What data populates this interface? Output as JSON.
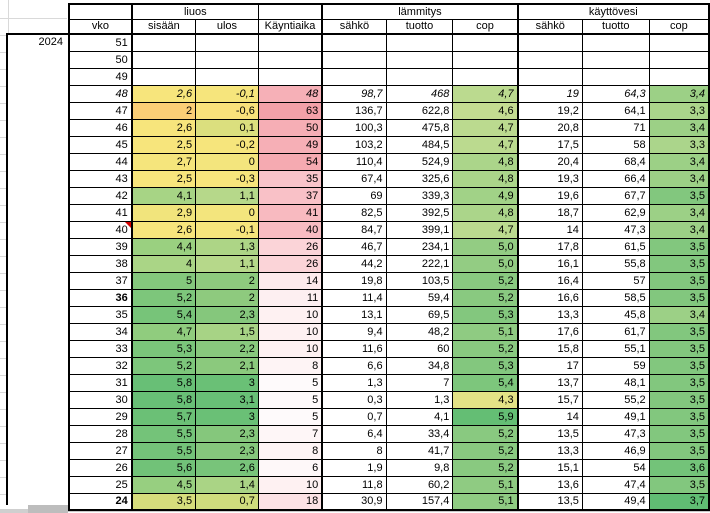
{
  "sheet": {
    "year_label": "2024",
    "header": {
      "group_liuos": "liuos",
      "group_lammitys": "lämmitys",
      "group_kayttovesi": "käyttövesi",
      "col_vko": "vko",
      "col_sisaan": "sisään",
      "col_ulos": "ulos",
      "col_kayntiaika": "Käyntiaika",
      "col_sahko_lammitys": "sähkö",
      "col_tuotto_lammitys": "tuotto",
      "col_cop_lammitys": "cop",
      "col_sahko_kayttovesi": "sähkö",
      "col_tuotto_kayttovesi": "tuotto",
      "col_cop_kayttovesi": "cop"
    },
    "accent_colors": {
      "scale_green_max": "#63be76",
      "scale_yellow_mid": "#f7e57c",
      "scale_orange_low": "#fbce76",
      "scale_pink_max": "#f3a1a8",
      "comment_marker": "#d40000",
      "gridline": "#d9d9d9"
    },
    "rows": [
      {
        "vko": "51",
        "cells": []
      },
      {
        "vko": "50",
        "cells": []
      },
      {
        "vko": "49",
        "cells": []
      },
      {
        "vko": "48",
        "italic": true,
        "cells": [
          {
            "v": "2,6",
            "bg": "#f7e57c"
          },
          {
            "v": "-0,1",
            "bg": "#f6e57c"
          },
          {
            "v": "48",
            "bg": "#f6b0b7"
          },
          {
            "v": "98,7"
          },
          {
            "v": "468"
          },
          {
            "v": "4,7",
            "bg": "#bbda8f"
          },
          {
            "v": "19"
          },
          {
            "v": "64,3"
          },
          {
            "v": "3,4",
            "bg": "#9cd086"
          }
        ]
      },
      {
        "vko": "47",
        "cells": [
          {
            "v": "2",
            "bg": "#fbce76"
          },
          {
            "v": "-0,6",
            "bg": "#f9e17b"
          },
          {
            "v": "63",
            "bg": "#f3a1a8"
          },
          {
            "v": "136,7"
          },
          {
            "v": "622,8"
          },
          {
            "v": "4,6",
            "bg": "#c4dc91"
          },
          {
            "v": "19,2"
          },
          {
            "v": "64,1"
          },
          {
            "v": "3,3",
            "bg": "#abd58b"
          }
        ]
      },
      {
        "vko": "46",
        "cells": [
          {
            "v": "2,6",
            "bg": "#f7e57c"
          },
          {
            "v": "0,1",
            "bg": "#dbdf7e"
          },
          {
            "v": "50",
            "bg": "#f6aeb5"
          },
          {
            "v": "100,3"
          },
          {
            "v": "475,8"
          },
          {
            "v": "4,7",
            "bg": "#bbda8f"
          },
          {
            "v": "20,8"
          },
          {
            "v": "71"
          },
          {
            "v": "3,4",
            "bg": "#9cd086"
          }
        ]
      },
      {
        "vko": "45",
        "cells": [
          {
            "v": "2,5",
            "bg": "#f7e57c"
          },
          {
            "v": "-0,2",
            "bg": "#f6e57c"
          },
          {
            "v": "49",
            "bg": "#f6afb6"
          },
          {
            "v": "103,2"
          },
          {
            "v": "484,5"
          },
          {
            "v": "4,7",
            "bg": "#bbda8f"
          },
          {
            "v": "17,5"
          },
          {
            "v": "58"
          },
          {
            "v": "3,3",
            "bg": "#abd58b"
          }
        ]
      },
      {
        "vko": "44",
        "cells": [
          {
            "v": "2,7",
            "bg": "#f5e57c"
          },
          {
            "v": "0",
            "bg": "#f3e57d"
          },
          {
            "v": "54",
            "bg": "#f5aab1"
          },
          {
            "v": "110,4"
          },
          {
            "v": "524,9"
          },
          {
            "v": "4,8",
            "bg": "#abd58a"
          },
          {
            "v": "20,4"
          },
          {
            "v": "68,4"
          },
          {
            "v": "3,4",
            "bg": "#9cd086"
          }
        ]
      },
      {
        "vko": "43",
        "cells": [
          {
            "v": "2,5",
            "bg": "#f7e57c"
          },
          {
            "v": "-0,3",
            "bg": "#f7e57c"
          },
          {
            "v": "35",
            "bg": "#f9c4ca"
          },
          {
            "v": "67,4"
          },
          {
            "v": "325,6"
          },
          {
            "v": "4,8",
            "bg": "#abd58a"
          },
          {
            "v": "19,3"
          },
          {
            "v": "66,4"
          },
          {
            "v": "3,4",
            "bg": "#9cd086"
          }
        ]
      },
      {
        "vko": "42",
        "cells": [
          {
            "v": "4,1",
            "bg": "#a7d485"
          },
          {
            "v": "1,1",
            "bg": "#b6d88a"
          },
          {
            "v": "37",
            "bg": "#f9c1c7"
          },
          {
            "v": "69"
          },
          {
            "v": "339,3"
          },
          {
            "v": "4,9",
            "bg": "#a1d287"
          },
          {
            "v": "19,6"
          },
          {
            "v": "67,7"
          },
          {
            "v": "3,5",
            "bg": "#82c77e"
          }
        ]
      },
      {
        "vko": "41",
        "cells": [
          {
            "v": "2,9",
            "bg": "#f1e47c"
          },
          {
            "v": "0",
            "bg": "#f3e57d"
          },
          {
            "v": "41",
            "bg": "#f8bac0"
          },
          {
            "v": "82,5"
          },
          {
            "v": "392,5"
          },
          {
            "v": "4,8",
            "bg": "#abd58a"
          },
          {
            "v": "18,7"
          },
          {
            "v": "62,9"
          },
          {
            "v": "3,4",
            "bg": "#9cd086"
          }
        ]
      },
      {
        "vko": "40",
        "note": true,
        "cells": [
          {
            "v": "2,6",
            "bg": "#f7e57c"
          },
          {
            "v": "-0,1",
            "bg": "#f6e57c"
          },
          {
            "v": "40",
            "bg": "#f8bcc2"
          },
          {
            "v": "84,7"
          },
          {
            "v": "399,1"
          },
          {
            "v": "4,7",
            "bg": "#bbda8f"
          },
          {
            "v": "14"
          },
          {
            "v": "47,3"
          },
          {
            "v": "3,4",
            "bg": "#9cd086"
          }
        ]
      },
      {
        "vko": "39",
        "cells": [
          {
            "v": "4,4",
            "bg": "#9ad080"
          },
          {
            "v": "1,3",
            "bg": "#add586"
          },
          {
            "v": "26",
            "bg": "#fbd4d8"
          },
          {
            "v": "46,7"
          },
          {
            "v": "234,1"
          },
          {
            "v": "5,0",
            "bg": "#93cc83"
          },
          {
            "v": "17,8"
          },
          {
            "v": "61,5"
          },
          {
            "v": "3,5",
            "bg": "#82c77e"
          }
        ]
      },
      {
        "vko": "38",
        "cells": [
          {
            "v": "4",
            "bg": "#aad586"
          },
          {
            "v": "1,1",
            "bg": "#b6d88a"
          },
          {
            "v": "26",
            "bg": "#fbd4d8"
          },
          {
            "v": "44,2"
          },
          {
            "v": "222,1"
          },
          {
            "v": "5,0",
            "bg": "#93cc83"
          },
          {
            "v": "16,1"
          },
          {
            "v": "55,8"
          },
          {
            "v": "3,5",
            "bg": "#82c77e"
          }
        ]
      },
      {
        "vko": "37",
        "cells": [
          {
            "v": "5",
            "bg": "#84c87c"
          },
          {
            "v": "2",
            "bg": "#8eca7e"
          },
          {
            "v": "14",
            "bg": "#fdeaec"
          },
          {
            "v": "19,8"
          },
          {
            "v": "103,5"
          },
          {
            "v": "5,2",
            "bg": "#89c980"
          },
          {
            "v": "16,4"
          },
          {
            "v": "57"
          },
          {
            "v": "3,5",
            "bg": "#82c77e"
          }
        ]
      },
      {
        "vko": "36",
        "bold": true,
        "cells": [
          {
            "v": "5,2",
            "bg": "#7dc67b"
          },
          {
            "v": "2",
            "bg": "#8eca7e"
          },
          {
            "v": "11",
            "bg": "#fdeff1"
          },
          {
            "v": "11,4"
          },
          {
            "v": "59,4"
          },
          {
            "v": "5,2",
            "bg": "#89c980"
          },
          {
            "v": "16,6"
          },
          {
            "v": "58,5"
          },
          {
            "v": "3,5",
            "bg": "#82c77e"
          }
        ]
      },
      {
        "vko": "35",
        "cells": [
          {
            "v": "5,4",
            "bg": "#77c479"
          },
          {
            "v": "2,3",
            "bg": "#85c77c"
          },
          {
            "v": "10",
            "bg": "#fef1f2"
          },
          {
            "v": "13,1"
          },
          {
            "v": "69,5"
          },
          {
            "v": "5,3",
            "bg": "#83c77e"
          },
          {
            "v": "13,3"
          },
          {
            "v": "45,8"
          },
          {
            "v": "3,4",
            "bg": "#9cd086"
          }
        ]
      },
      {
        "vko": "34",
        "cells": [
          {
            "v": "4,7",
            "bg": "#90cc7e"
          },
          {
            "v": "1,5",
            "bg": "#a7d385"
          },
          {
            "v": "10",
            "bg": "#fef1f2"
          },
          {
            "v": "9,4"
          },
          {
            "v": "48,2"
          },
          {
            "v": "5,1",
            "bg": "#8fcb82"
          },
          {
            "v": "17,6"
          },
          {
            "v": "61,7"
          },
          {
            "v": "3,5",
            "bg": "#82c77e"
          }
        ]
      },
      {
        "vko": "33",
        "cells": [
          {
            "v": "5,3",
            "bg": "#7ac57a"
          },
          {
            "v": "2,2",
            "bg": "#88c87d"
          },
          {
            "v": "10",
            "bg": "#fef1f2"
          },
          {
            "v": "11,6"
          },
          {
            "v": "60"
          },
          {
            "v": "5,2",
            "bg": "#89c980"
          },
          {
            "v": "15,8"
          },
          {
            "v": "55,1"
          },
          {
            "v": "3,5",
            "bg": "#82c77e"
          }
        ]
      },
      {
        "vko": "32",
        "cells": [
          {
            "v": "5,2",
            "bg": "#7dc67b"
          },
          {
            "v": "2,1",
            "bg": "#8bc97d"
          },
          {
            "v": "8",
            "bg": "#fef4f5"
          },
          {
            "v": "6,6"
          },
          {
            "v": "34,8"
          },
          {
            "v": "5,3",
            "bg": "#83c77e"
          },
          {
            "v": "17"
          },
          {
            "v": "59"
          },
          {
            "v": "3,5",
            "bg": "#82c77e"
          }
        ]
      },
      {
        "vko": "31",
        "cells": [
          {
            "v": "5,8",
            "bg": "#68bf76"
          },
          {
            "v": "3",
            "bg": "#6ac076"
          },
          {
            "v": "5",
            "bg": "#fefafb"
          },
          {
            "v": "1,3"
          },
          {
            "v": "7"
          },
          {
            "v": "5,4",
            "bg": "#7dc67c"
          },
          {
            "v": "13,7"
          },
          {
            "v": "48,1"
          },
          {
            "v": "3,5",
            "bg": "#82c77e"
          }
        ]
      },
      {
        "vko": "30",
        "cells": [
          {
            "v": "5,8",
            "bg": "#68bf76"
          },
          {
            "v": "3,1",
            "bg": "#68bf76"
          },
          {
            "v": "5",
            "bg": "#fefafb"
          },
          {
            "v": "0,3"
          },
          {
            "v": "1,3"
          },
          {
            "v": "4,3",
            "bg": "#e3e286"
          },
          {
            "v": "15,7"
          },
          {
            "v": "55,2"
          },
          {
            "v": "3,5",
            "bg": "#82c77e"
          }
        ]
      },
      {
        "vko": "29",
        "cells": [
          {
            "v": "5,7",
            "bg": "#6bc076"
          },
          {
            "v": "3",
            "bg": "#6ac076"
          },
          {
            "v": "5",
            "bg": "#fefafb"
          },
          {
            "v": "0,7"
          },
          {
            "v": "4,1"
          },
          {
            "v": "5,9",
            "bg": "#64be74"
          },
          {
            "v": "14"
          },
          {
            "v": "49,1"
          },
          {
            "v": "3,5",
            "bg": "#82c77e"
          }
        ]
      },
      {
        "vko": "28",
        "cells": [
          {
            "v": "5,5",
            "bg": "#74c379"
          },
          {
            "v": "2,3",
            "bg": "#85c77c"
          },
          {
            "v": "7",
            "bg": "#fef6f7"
          },
          {
            "v": "6,4"
          },
          {
            "v": "33,4"
          },
          {
            "v": "5,2",
            "bg": "#89c980"
          },
          {
            "v": "13,5"
          },
          {
            "v": "47,3"
          },
          {
            "v": "3,5",
            "bg": "#82c77e"
          }
        ]
      },
      {
        "vko": "27",
        "cells": [
          {
            "v": "5,5",
            "bg": "#74c379"
          },
          {
            "v": "2,3",
            "bg": "#85c77c"
          },
          {
            "v": "8",
            "bg": "#fef4f5"
          },
          {
            "v": "8"
          },
          {
            "v": "41,7"
          },
          {
            "v": "5,2",
            "bg": "#89c980"
          },
          {
            "v": "13,3"
          },
          {
            "v": "46,9"
          },
          {
            "v": "3,5",
            "bg": "#82c77e"
          }
        ]
      },
      {
        "vko": "26",
        "cells": [
          {
            "v": "5,6",
            "bg": "#71c278"
          },
          {
            "v": "2,6",
            "bg": "#78c47a"
          },
          {
            "v": "6",
            "bg": "#fef8f9"
          },
          {
            "v": "1,9"
          },
          {
            "v": "9,8"
          },
          {
            "v": "5,2",
            "bg": "#89c980"
          },
          {
            "v": "15,1"
          },
          {
            "v": "54"
          },
          {
            "v": "3,6",
            "bg": "#73c379"
          }
        ]
      },
      {
        "vko": "25",
        "cells": [
          {
            "v": "4,5",
            "bg": "#97cf80"
          },
          {
            "v": "1,4",
            "bg": "#aad485"
          },
          {
            "v": "10",
            "bg": "#fef1f2"
          },
          {
            "v": "11,8"
          },
          {
            "v": "60,2"
          },
          {
            "v": "5,1",
            "bg": "#8fcb82"
          },
          {
            "v": "13,6"
          },
          {
            "v": "47,4"
          },
          {
            "v": "3,5",
            "bg": "#82c77e"
          }
        ]
      },
      {
        "vko": "24",
        "bold": true,
        "cells": [
          {
            "v": "3,5",
            "bg": "#d6dd7c"
          },
          {
            "v": "0,7",
            "bg": "#cfdc7d"
          },
          {
            "v": "18",
            "bg": "#fce2e5"
          },
          {
            "v": "30,9"
          },
          {
            "v": "157,4"
          },
          {
            "v": "5,1",
            "bg": "#8fcb82"
          },
          {
            "v": "13,5"
          },
          {
            "v": "49,4"
          },
          {
            "v": "3,7",
            "bg": "#60bd73"
          }
        ]
      }
    ]
  }
}
